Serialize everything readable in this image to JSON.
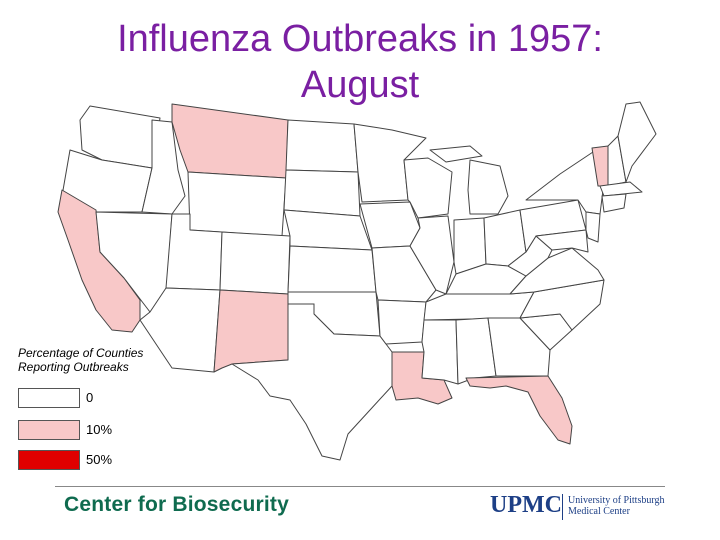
{
  "title": {
    "line1": "Influenza Outbreaks in 1957:",
    "line2": "August"
  },
  "legend": {
    "title_line1": "Percentage of Counties",
    "title_line2": "Reporting Outbreaks",
    "items": [
      {
        "label": "0",
        "color": "#ffffff"
      },
      {
        "label": "10%",
        "color": "#f8c8c8"
      },
      {
        "label": "50%",
        "color": "#e00000"
      }
    ]
  },
  "map": {
    "highlighted_states": [
      {
        "state": "Montana",
        "level": "10%"
      },
      {
        "state": "California",
        "level": "10%"
      },
      {
        "state": "New Mexico",
        "level": "10%"
      },
      {
        "state": "Louisiana",
        "level": "10%"
      },
      {
        "state": "Florida",
        "level": "10%"
      },
      {
        "state": "Vermont",
        "level": "10%"
      }
    ]
  },
  "footer": {
    "left_brand": "Center for Biosecurity",
    "right_brand": "UPMC",
    "right_brand_sub_line1": "University of Pittsburgh",
    "right_brand_sub_line2": "Medical Center"
  }
}
